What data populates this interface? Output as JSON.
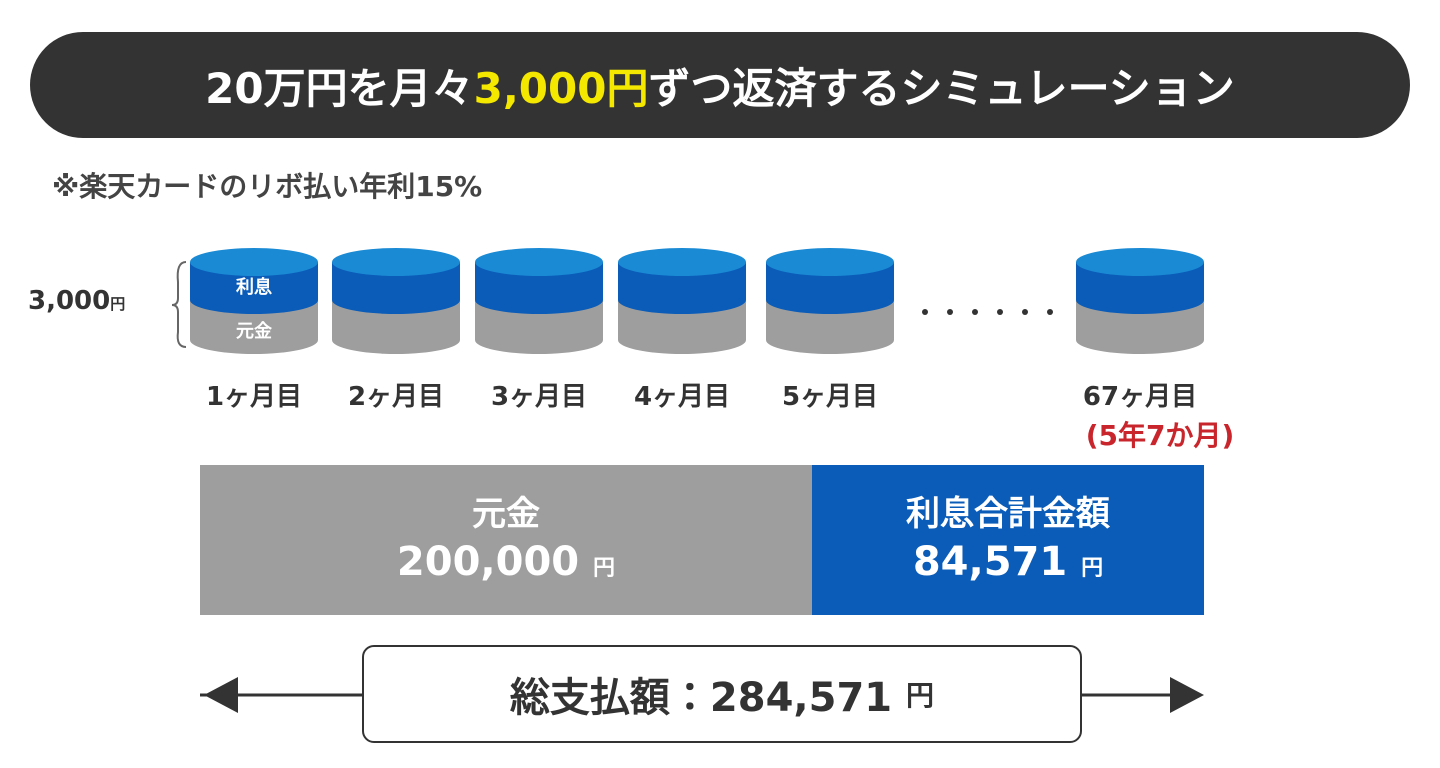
{
  "header": {
    "title_before": "20万円を月々",
    "title_highlight": "3,000円",
    "title_after": "ずつ返済するシミュレーション",
    "note": "※楽天カードのリボ払い年利15%"
  },
  "payment": {
    "amount": "3,000",
    "unit": "円",
    "interest_label": "利息",
    "principal_label": "元金"
  },
  "months": [
    "1ヶ月目",
    "2ヶ月目",
    "3ヶ月目",
    "4ヶ月目",
    "5ヶ月目",
    "67ヶ月目"
  ],
  "duration": "(5年7か月)",
  "breakdown": {
    "principal_label": "元金",
    "principal_amount": "200,000",
    "interest_label": "利息合計金額",
    "interest_amount": "84,571",
    "unit": "円"
  },
  "total": {
    "label": "総支払額：284,571",
    "unit": "円"
  }
}
